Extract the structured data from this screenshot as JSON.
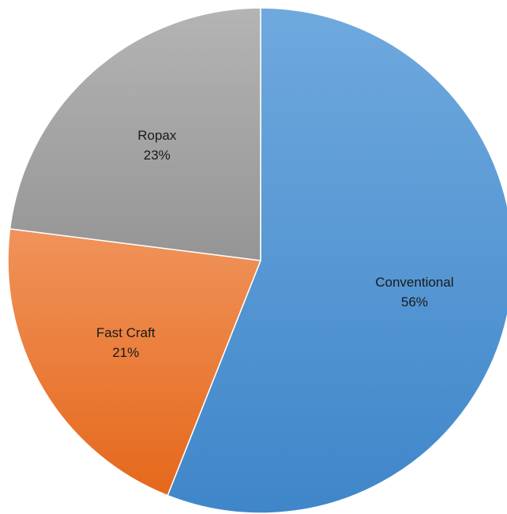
{
  "chart_data": {
    "type": "pie",
    "title": "",
    "series": [
      {
        "values": [
          56,
          21,
          23
        ]
      }
    ],
    "categories": [
      "Conventional",
      "Fast Craft",
      "Ropax"
    ],
    "data_labels": [
      "56%",
      "21%",
      "23%"
    ],
    "legend": "none",
    "grid": false,
    "colors": [
      "#5b9bd5",
      "#ed7d31",
      "#a5a5a5"
    ],
    "start_angle_deg": 0,
    "direction": "clockwise"
  }
}
